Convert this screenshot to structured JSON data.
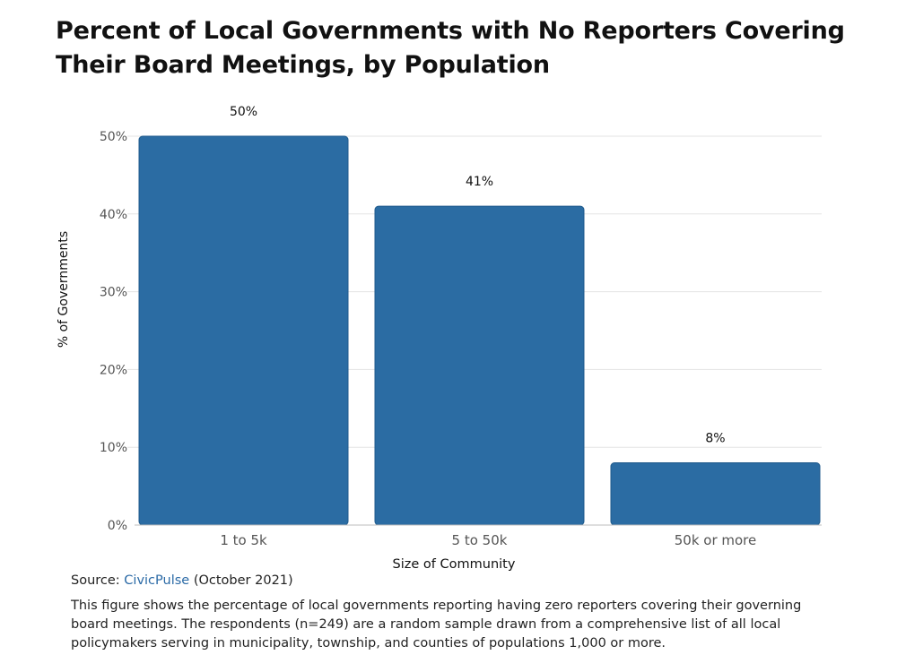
{
  "chart_data": {
    "type": "bar",
    "title_lines": [
      "Percent of Local Governments with No Reporters Covering",
      "Their Board Meetings, by Population"
    ],
    "categories": [
      "1 to 5k",
      "5 to 50k",
      "50k or more"
    ],
    "values": [
      50,
      41,
      8
    ],
    "value_labels": [
      "50%",
      "41%",
      "8%"
    ],
    "ylim": [
      0,
      50
    ],
    "yticks": [
      "0%",
      "10%",
      "20%",
      "30%",
      "40%",
      "50%"
    ],
    "ytick_values": [
      0,
      10,
      20,
      30,
      40,
      50
    ],
    "xlabel": "Size of Community",
    "ylabel": "% of Governments",
    "grid": true,
    "bar_color": "#2b6ca3"
  },
  "footer": {
    "source_prefix": "Source:",
    "source_link": "CivicPulse",
    "source_suffix": "(October 2021)",
    "note": "This figure shows the percentage of local governments reporting having zero reporters covering their governing board meetings. The respondents (n=249) are a random sample drawn from a comprehensive list of all local policymakers serving in municipality, township, and counties of populations 1,000 or more."
  },
  "colors": {
    "link": "#2b6aa6",
    "grid": "#e3e3e3",
    "axis_text": "#555555"
  }
}
